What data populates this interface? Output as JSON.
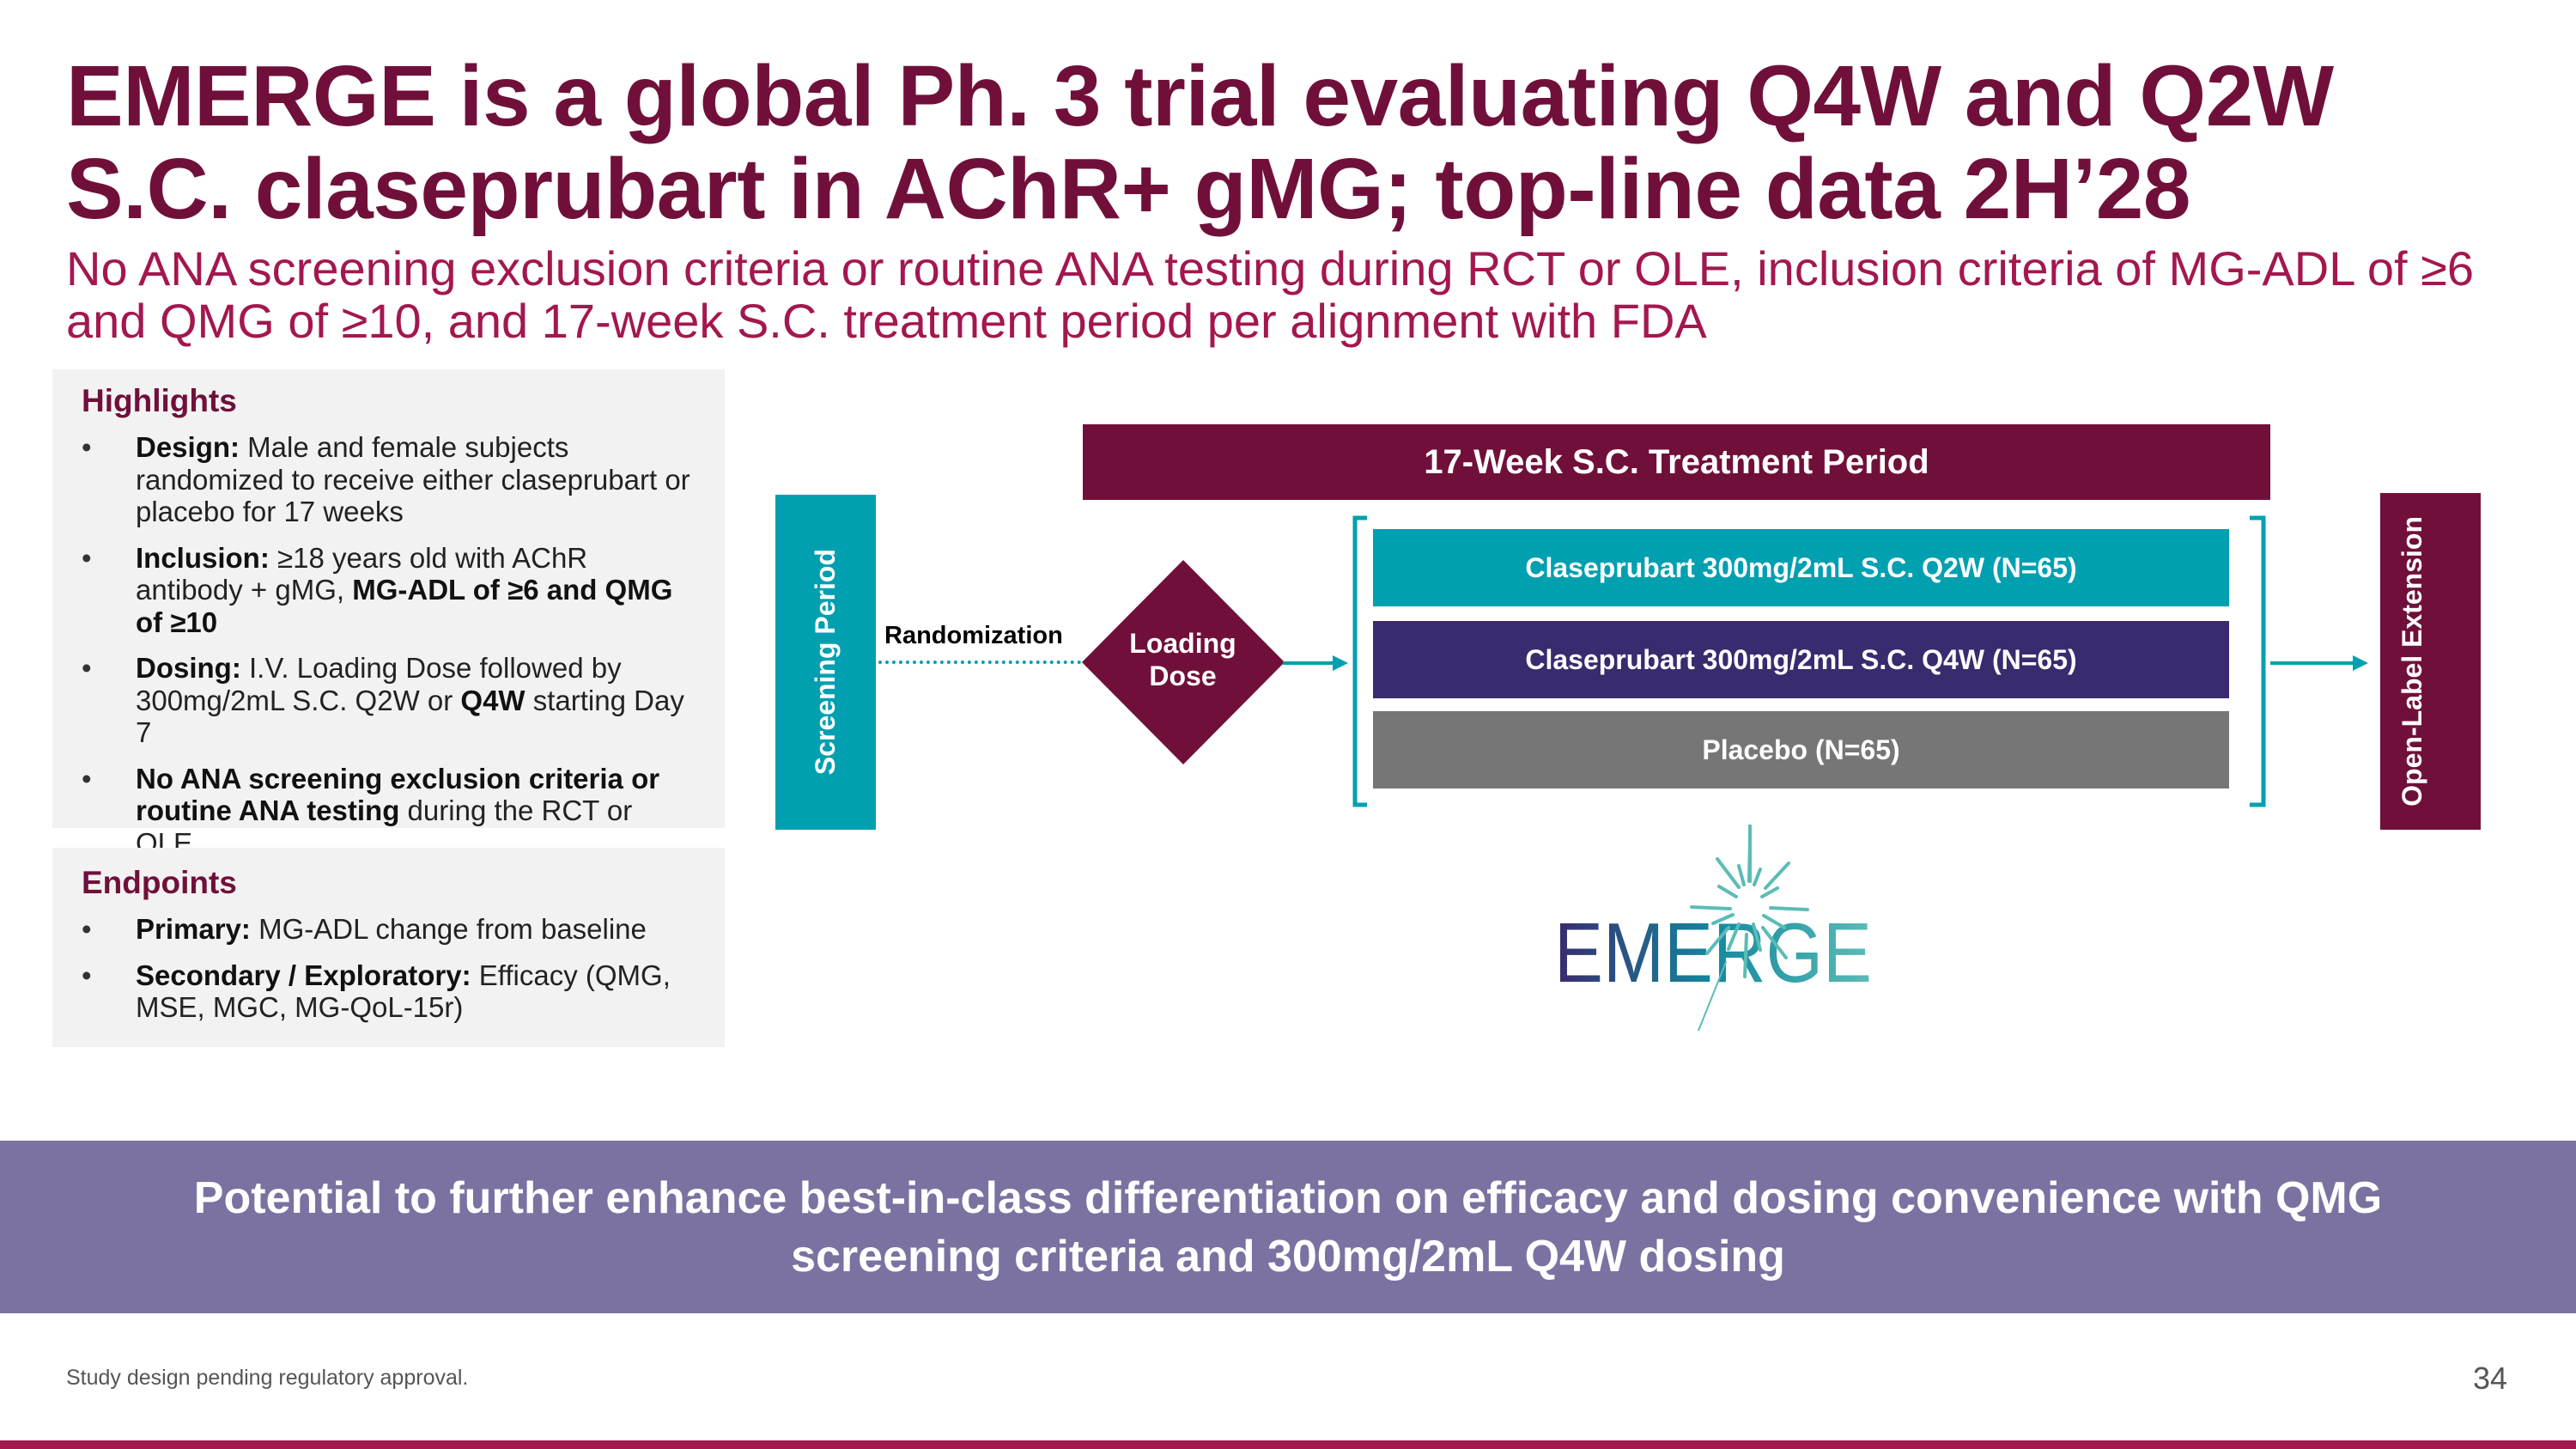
{
  "title": "EMERGE is a global Ph. 3 trial evaluating Q4W and Q2W S.C. claseprubart in AChR+ gMG; top-line data 2H’28",
  "subtitle": "No ANA screening exclusion criteria or routine ANA testing during RCT or OLE, inclusion criteria of MG-ADL of ≥6 and QMG of ≥10, and 17-week S.C. treatment period per alignment with FDA",
  "highlights": {
    "heading": "Highlights",
    "items": [
      {
        "b1": "Design:",
        "t1": " Male and female subjects randomized to receive either claseprubart or placebo for 17 weeks"
      },
      {
        "b1": "Inclusion:",
        "t1": " ≥18 years old with AChR antibody + gMG, ",
        "b2": "MG-ADL of ≥6 and QMG of ≥10"
      },
      {
        "b1": "Dosing:",
        "t1": " I.V. Loading Dose followed by 300mg/2mL S.C. Q2W or ",
        "b2": "Q4W",
        "t2": " starting Day 7"
      },
      {
        "b1": "No ANA screening exclusion criteria or routine ANA testing",
        "t1": " during the RCT or OLE"
      }
    ]
  },
  "endpoints": {
    "heading": "Endpoints",
    "items": [
      {
        "b1": "Primary:",
        "t1": " MG-ADL change from baseline"
      },
      {
        "b1": "Secondary / Exploratory:",
        "t1": " Efficacy (QMG, MSE, MGC, MG-QoL-15r)"
      }
    ]
  },
  "diagram": {
    "screening": "Screening Period",
    "treatment_header": "17-Week S.C. Treatment Period",
    "randomization": "Randomization",
    "loading_dose": "Loading Dose",
    "arms": [
      {
        "label": "Claseprubart 300mg/2mL S.C. Q2W (N=65)",
        "color": "#00a0b0"
      },
      {
        "label": "Claseprubart 300mg/2mL S.C. Q4W (N=65)",
        "color": "#3a2a6e"
      },
      {
        "label": "Placebo (N=65)",
        "color": "#767676"
      }
    ],
    "ole": "Open-Label Extension",
    "colors": {
      "crimson": "#70103a",
      "teal": "#00a0b0"
    }
  },
  "logo": "EMERGE",
  "banner": "Potential to further enhance best-in-class differentiation on efficacy and dosing convenience with QMG screening criteria and 300mg/2mL Q4W dosing",
  "footnote": "Study design pending regulatory approval.",
  "page_number": "34"
}
